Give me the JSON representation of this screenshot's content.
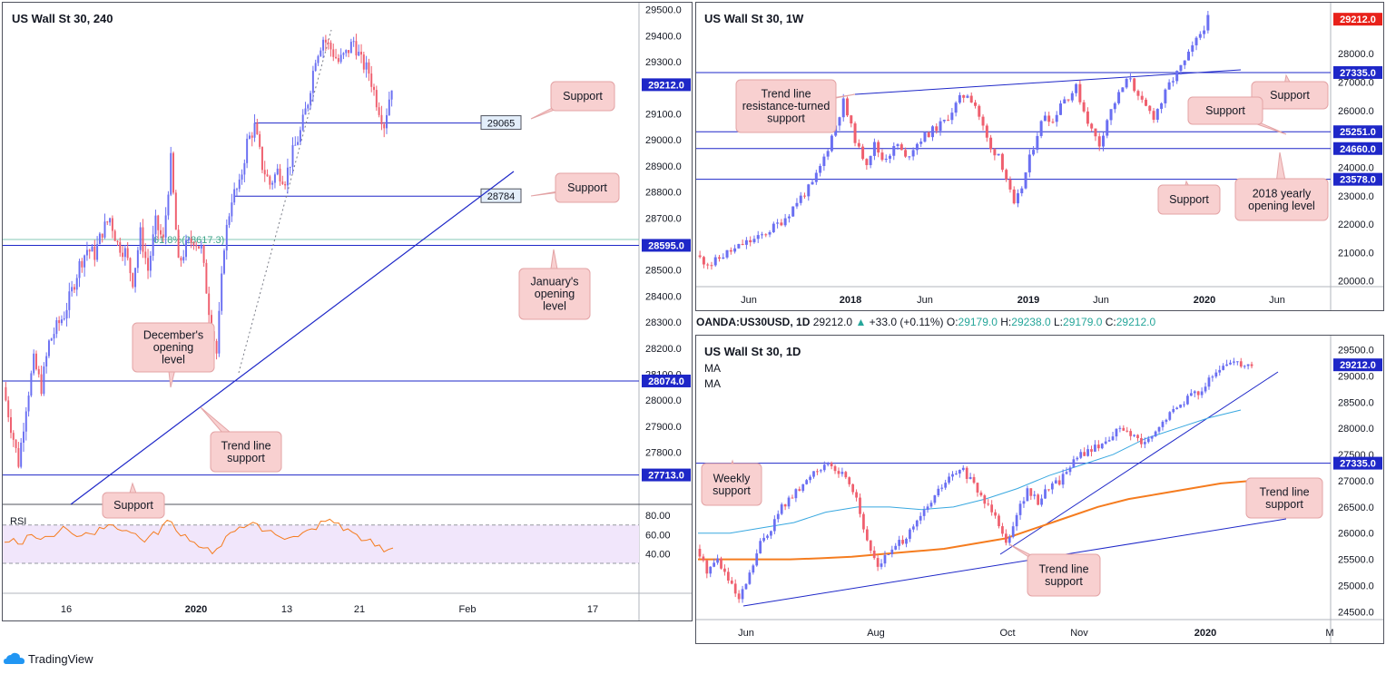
{
  "colors": {
    "bull": "#6a6ff2",
    "bear": "#ef5f6e",
    "level": "#1e27c8",
    "price_tag": "#1e27c8",
    "price_tag_red": "#e8221b",
    "ema_slow": "#f57c1f",
    "ema_fast": "#38a8e0",
    "rsi": "#f57c1f",
    "rsi_band": "#f1e6fb",
    "note_fill": "#f8d0d0",
    "note_border": "#e3a3a5",
    "fib": "#84c9b7"
  },
  "footer": {
    "brand": "TradingView"
  },
  "ohlc_bar": {
    "symbol": "OANDA:US30USD, 1D",
    "last": "29212.0",
    "arrow": "▲",
    "change": "+33.0 (+0.11%)",
    "o_label": "O:",
    "o": "29179.0",
    "h_label": "H:",
    "h": "29238.0",
    "l_label": "L:",
    "l": "29179.0",
    "c_label": "C:",
    "c": "29212.0"
  },
  "chart_data": [
    {
      "id": "h4",
      "type": "candlestick",
      "title": "US Wall St 30, 240",
      "yrange": [
        27600,
        29520
      ],
      "y_ticks": [
        "29500.0",
        "29400.0",
        "29300.0",
        "29212.0",
        "29100.0",
        "29000.0",
        "28900.0",
        "28800.0",
        "28700.0",
        "28595.0",
        "28500.0",
        "28400.0",
        "28300.0",
        "28200.0",
        "28100.0",
        "28074.0",
        "28000.0",
        "27900.0",
        "27800.0",
        "27713.0"
      ],
      "y_tick_values": [
        29500,
        29400,
        29300,
        29212,
        29100,
        29000,
        28900,
        28800,
        28700,
        28595,
        28500,
        28400,
        28300,
        28200,
        28100,
        28074,
        28000,
        27900,
        27800,
        27713
      ],
      "x_ticks": [
        "16",
        "2020",
        "13",
        "21",
        "Feb",
        "17"
      ],
      "levels": [
        {
          "value": 28595,
          "label": "28595.0"
        },
        {
          "value": 28074,
          "label": "28074.0"
        },
        {
          "value": 27713,
          "label": "27713.0"
        }
      ],
      "short_levels": [
        {
          "value": 29065,
          "label": "29065"
        },
        {
          "value": 28784,
          "label": "28784"
        }
      ],
      "fib_label": "61.8%(28617.3)",
      "fib_value": 28617.3,
      "last": {
        "value": 29212,
        "label": "29212.0"
      },
      "path": [
        28050,
        27900,
        27760,
        27980,
        28150,
        28050,
        28220,
        28280,
        28330,
        28420,
        28520,
        28580,
        28560,
        28650,
        28700,
        28600,
        28570,
        28460,
        28640,
        28500,
        28680,
        28610,
        28920,
        28520,
        28590,
        28620,
        28580,
        28350,
        28180,
        28600,
        28780,
        28820,
        28990,
        29050,
        28900,
        28830,
        28880,
        28850,
        28950,
        29030,
        29150,
        29320,
        29390,
        29350,
        29300,
        29330,
        29380,
        29300,
        29260,
        29150,
        29060,
        29212
      ],
      "notes": [
        {
          "text": "Support"
        },
        {
          "text": "Support"
        },
        {
          "text": "January's opening level"
        },
        {
          "text": "December's opening level"
        },
        {
          "text": "Trend line support"
        },
        {
          "text": "Support"
        }
      ],
      "rsi": {
        "label": "RSI",
        "ticks": [
          "80.00",
          "60.00",
          "40.00"
        ],
        "tick_values": [
          80,
          60,
          40
        ],
        "series": [
          52,
          56,
          50,
          60,
          55,
          58,
          63,
          65,
          58,
          62,
          60,
          66,
          70,
          64,
          62,
          56,
          58,
          60,
          75,
          64,
          60,
          52,
          46,
          40,
          48,
          62,
          68,
          70,
          71,
          64,
          60,
          55,
          58,
          62,
          66,
          74,
          76,
          72,
          66,
          60,
          54,
          48,
          42,
          46
        ]
      }
    },
    {
      "id": "w1",
      "type": "candlestick",
      "title": "US Wall St 30, 1W",
      "yrange": [
        19800,
        29600
      ],
      "y_ticks": [
        "29212.0",
        "28000.0",
        "27335.0",
        "27000.0",
        "26000.0",
        "25251.0",
        "24660.0",
        "24000.0",
        "23578.0",
        "23000.0",
        "22000.0",
        "21000.0",
        "20000.0"
      ],
      "y_tick_values": [
        29212,
        28000,
        27335,
        27000,
        26000,
        25251,
        24660,
        24000,
        23578,
        23000,
        22000,
        21000,
        20000
      ],
      "x_ticks": [
        "Jun",
        "2018",
        "Jun",
        "2019",
        "Jun",
        "2020",
        "Jun"
      ],
      "levels": [
        {
          "value": 27335,
          "label": "27335.0"
        },
        {
          "value": 25251,
          "label": "25251.0"
        },
        {
          "value": 24660,
          "label": "24660.0"
        },
        {
          "value": 23578,
          "label": "23578.0"
        }
      ],
      "last": {
        "value": 29212,
        "label": "29212.0"
      },
      "path": [
        20900,
        20700,
        20600,
        20800,
        21000,
        21100,
        21300,
        21400,
        21500,
        21700,
        21900,
        22100,
        22400,
        22800,
        23100,
        23400,
        24000,
        24700,
        25500,
        26300,
        25400,
        24600,
        24200,
        24800,
        24300,
        24500,
        24800,
        24300,
        24700,
        25000,
        25200,
        25400,
        25600,
        26000,
        26400,
        26600,
        26200,
        25400,
        24600,
        24500,
        23600,
        22600,
        23300,
        24300,
        25200,
        25900,
        25600,
        26300,
        26500,
        26800,
        26000,
        25300,
        24800,
        25700,
        26300,
        26800,
        27200,
        26400,
        26100,
        25800,
        26300,
        26900,
        27300,
        27700,
        28200,
        28700,
        29212
      ],
      "notes": [
        {
          "text": "Trend line resistance-turned support"
        },
        {
          "text": "Support"
        },
        {
          "text": "Support"
        },
        {
          "text": "2018 yearly opening level"
        },
        {
          "text": "Support"
        }
      ]
    },
    {
      "id": "d1",
      "type": "candlestick",
      "title": "US Wall St 30, 1D",
      "legend": [
        "MA",
        "MA"
      ],
      "yrange": [
        24350,
        29700
      ],
      "y_ticks": [
        "29500.0",
        "29212.0",
        "29000.0",
        "28500.0",
        "28000.0",
        "27500.0",
        "27335.0",
        "27000.0",
        "26500.0",
        "26000.0",
        "25500.0",
        "25000.0",
        "24500.0"
      ],
      "y_tick_values": [
        29500,
        29212,
        29000,
        28500,
        28000,
        27500,
        27335,
        27000,
        26500,
        26000,
        25500,
        25000,
        24500
      ],
      "x_ticks": [
        "Jun",
        "Aug",
        "Oct",
        "Nov",
        "2020",
        "M"
      ],
      "levels": [
        {
          "value": 27335,
          "label": "27335.0"
        }
      ],
      "last": {
        "value": 29212,
        "label": "29212.0"
      },
      "path": [
        25700,
        25300,
        25500,
        25100,
        24700,
        25200,
        25800,
        26100,
        26500,
        26700,
        26900,
        27200,
        27300,
        27200,
        27100,
        26700,
        25800,
        25400,
        25600,
        25800,
        26000,
        26300,
        26600,
        26900,
        27100,
        27200,
        26900,
        26600,
        26400,
        25800,
        26400,
        26800,
        26600,
        26900,
        27000,
        27300,
        27500,
        27600,
        27700,
        27900,
        28000,
        27800,
        27700,
        27900,
        28200,
        28400,
        28600,
        28700,
        28900,
        29100,
        29300,
        29250,
        29212
      ],
      "ema_slow": [
        25500,
        25500,
        25500,
        25500,
        25520,
        25550,
        25600,
        25650,
        25700,
        25800,
        25900,
        26100,
        26300,
        26500,
        26650,
        26750,
        26850,
        26950,
        27000
      ],
      "ema_fast": [
        26000,
        26000,
        26100,
        26200,
        26400,
        26500,
        26500,
        26450,
        26500,
        26650,
        26850,
        27100,
        27300,
        27500,
        27800,
        28000,
        28200,
        28350
      ],
      "notes": [
        {
          "text": "Weekly support"
        },
        {
          "text": "Trend line support"
        },
        {
          "text": "Trend line support"
        }
      ]
    }
  ]
}
